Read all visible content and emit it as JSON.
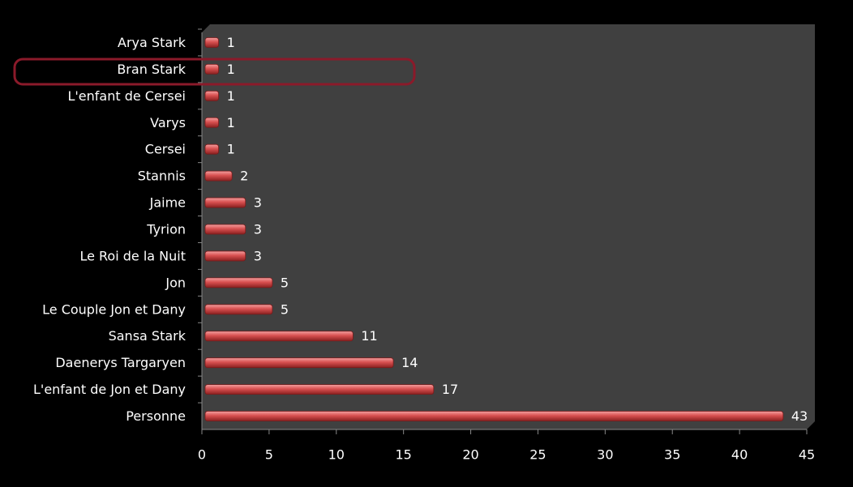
{
  "chart_data": {
    "type": "bar",
    "orientation": "horizontal",
    "categories": [
      "Arya Stark",
      "Bran Stark",
      "L'enfant de Cersei",
      "Varys",
      "Cersei",
      "Stannis",
      "Jaime",
      "Tyrion",
      "Le Roi de la Nuit",
      "Jon",
      "Le Couple Jon et Dany",
      "Sansa Stark",
      "Daenerys Targaryen",
      "L'enfant de Jon et Dany",
      "Personne"
    ],
    "values": [
      1,
      1,
      1,
      1,
      1,
      2,
      3,
      3,
      3,
      5,
      5,
      11,
      14,
      17,
      43
    ],
    "color": "#e05a5a",
    "xlim": [
      0,
      45
    ],
    "xticks": [
      0,
      5,
      10,
      15,
      20,
      25,
      30,
      35,
      40,
      45
    ]
  }
}
